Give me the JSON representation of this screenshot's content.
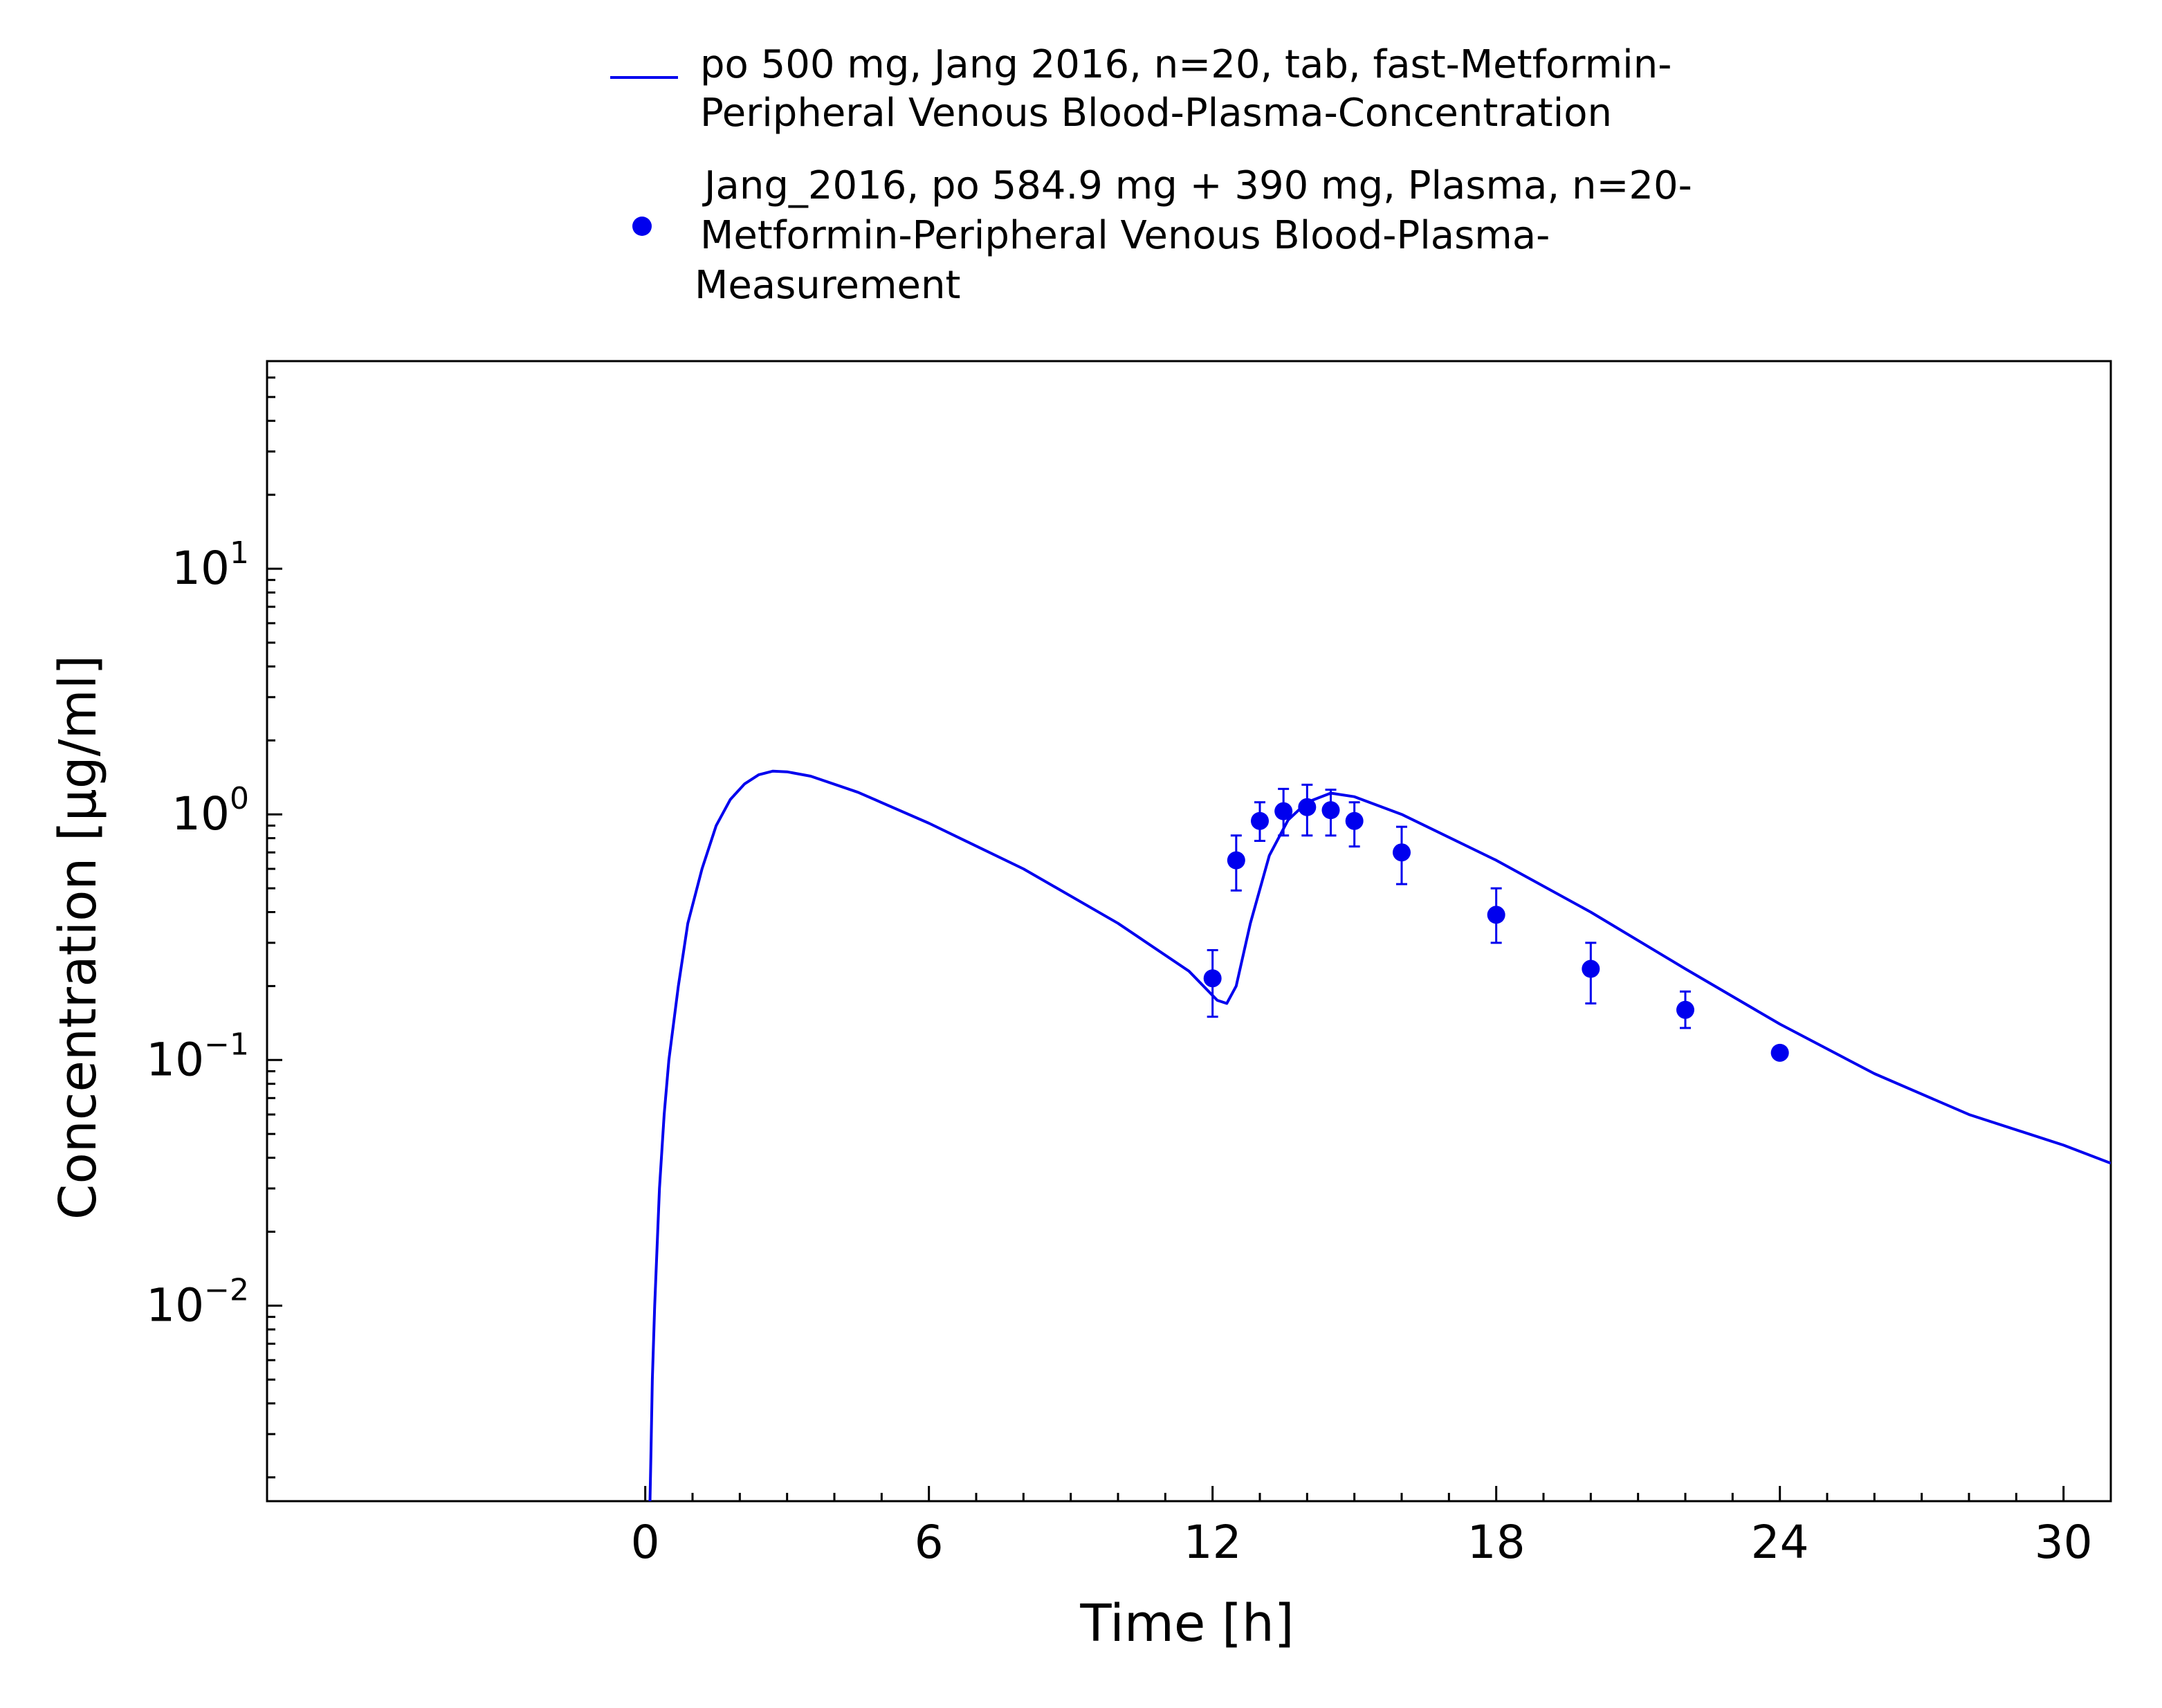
{
  "legend": {
    "entries": [
      {
        "kind": "line",
        "color": "#0000ee",
        "lines": [
          "po 500 mg, Jang 2016, n=20, tab, fast-Metformin-",
          "Peripheral Venous Blood-Plasma-Concentration"
        ]
      },
      {
        "kind": "marker",
        "color": "#0000ee",
        "lines": [
          "Jang_2016, po 584.9 mg + 390 mg, Plasma, n=20-",
          "Metformin-Peripheral Venous Blood-Plasma-",
          "Measurement"
        ]
      }
    ]
  },
  "chart_data": {
    "type": "line",
    "xlabel": "Time [h]",
    "ylabel": "Concentration [µg/ml]",
    "xlim": [
      -8,
      31
    ],
    "ylim": [
      0.0016,
      70
    ],
    "y_scale": "log",
    "grid": false,
    "legend_position": "top",
    "x_ticks": [
      0,
      6,
      12,
      18,
      24,
      30
    ],
    "x_tick_labels": [
      "0",
      "6",
      "12",
      "18",
      "24",
      "30"
    ],
    "y_ticks": [
      {
        "value": 10,
        "base": "10",
        "exp": "1"
      },
      {
        "value": 1,
        "base": "10",
        "exp": "0"
      },
      {
        "value": 0.1,
        "base": "10",
        "exp": "−1"
      },
      {
        "value": 0.01,
        "base": "10",
        "exp": "−2"
      }
    ],
    "series": [
      {
        "name": "po 500 mg, Jang 2016, n=20, tab, fast-Metformin-Peripheral Venous Blood-Plasma-Concentration",
        "kind": "line",
        "color": "#0000ee",
        "points": [
          [
            0.1,
            0.0016
          ],
          [
            0.12,
            0.0025
          ],
          [
            0.15,
            0.005
          ],
          [
            0.2,
            0.01
          ],
          [
            0.3,
            0.03
          ],
          [
            0.4,
            0.06
          ],
          [
            0.5,
            0.1
          ],
          [
            0.7,
            0.2
          ],
          [
            0.9,
            0.36
          ],
          [
            1.2,
            0.6
          ],
          [
            1.5,
            0.9
          ],
          [
            1.8,
            1.15
          ],
          [
            2.1,
            1.33
          ],
          [
            2.4,
            1.45
          ],
          [
            2.7,
            1.5
          ],
          [
            3.0,
            1.49
          ],
          [
            3.5,
            1.43
          ],
          [
            4.5,
            1.23
          ],
          [
            6.0,
            0.92
          ],
          [
            8.0,
            0.6
          ],
          [
            10.0,
            0.36
          ],
          [
            11.5,
            0.23
          ],
          [
            12.1,
            0.175
          ],
          [
            12.3,
            0.17
          ],
          [
            12.5,
            0.2
          ],
          [
            12.8,
            0.36
          ],
          [
            13.2,
            0.68
          ],
          [
            13.6,
            0.95
          ],
          [
            14.0,
            1.12
          ],
          [
            14.5,
            1.22
          ],
          [
            15.0,
            1.18
          ],
          [
            16.0,
            1.0
          ],
          [
            18.0,
            0.65
          ],
          [
            20.0,
            0.4
          ],
          [
            22.0,
            0.235
          ],
          [
            24.0,
            0.14
          ],
          [
            26.0,
            0.088
          ],
          [
            28.0,
            0.06
          ],
          [
            30.0,
            0.045
          ],
          [
            31.0,
            0.038
          ]
        ]
      },
      {
        "name": "Jang_2016, po 584.9 mg + 390 mg, Plasma, n=20-Metformin-Peripheral Venous Blood-Plasma-Measurement",
        "kind": "scatter",
        "color": "#0000ee",
        "points": [
          {
            "x": 12.0,
            "y": 0.215,
            "lo": 0.15,
            "hi": 0.28
          },
          {
            "x": 12.5,
            "y": 0.65,
            "lo": 0.49,
            "hi": 0.82
          },
          {
            "x": 13.0,
            "y": 0.94,
            "lo": 0.78,
            "hi": 1.12
          },
          {
            "x": 13.5,
            "y": 1.03,
            "lo": 0.82,
            "hi": 1.27
          },
          {
            "x": 14.0,
            "y": 1.07,
            "lo": 0.82,
            "hi": 1.32
          },
          {
            "x": 14.5,
            "y": 1.04,
            "lo": 0.82,
            "hi": 1.26
          },
          {
            "x": 15.0,
            "y": 0.94,
            "lo": 0.74,
            "hi": 1.12
          },
          {
            "x": 16.0,
            "y": 0.7,
            "lo": 0.52,
            "hi": 0.89
          },
          {
            "x": 18.0,
            "y": 0.39,
            "lo": 0.3,
            "hi": 0.5
          },
          {
            "x": 20.0,
            "y": 0.235,
            "lo": 0.17,
            "hi": 0.3
          },
          {
            "x": 22.0,
            "y": 0.16,
            "lo": 0.135,
            "hi": 0.19
          },
          {
            "x": 24.0,
            "y": 0.107,
            "lo": 0.107,
            "hi": 0.107
          }
        ]
      }
    ]
  }
}
